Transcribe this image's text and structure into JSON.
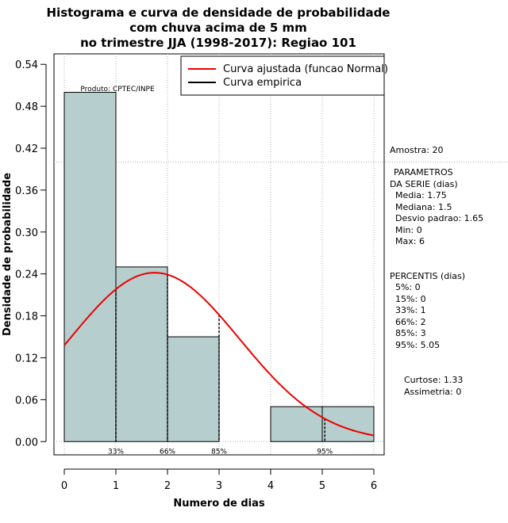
{
  "chart_data": {
    "type": "bar",
    "title": [
      "Histograma e curva de densidade de probabilidade",
      "com chuva acima de 5 mm",
      "no trimestre JJA (1998-2017): Regiao 101"
    ],
    "xlabel": "Numero de dias",
    "ylabel": "Densidade de probabilidade",
    "xlim": [
      -0.2,
      6.2
    ],
    "ylim": [
      -0.019,
      0.555
    ],
    "x_ticks": [
      0,
      1,
      2,
      3,
      4,
      5,
      6
    ],
    "y_ticks": [
      "0.00",
      "0.06",
      "0.12",
      "0.18",
      "0.24",
      "0.30",
      "0.36",
      "0.42",
      "0.48",
      "0.54"
    ],
    "bins": [
      {
        "from": 0,
        "to": 1,
        "density": 0.5
      },
      {
        "from": 1,
        "to": 2,
        "density": 0.25
      },
      {
        "from": 2,
        "to": 3,
        "density": 0.15
      },
      {
        "from": 3,
        "to": 4,
        "density": 0.0
      },
      {
        "from": 4,
        "to": 5,
        "density": 0.05
      },
      {
        "from": 5,
        "to": 6,
        "density": 0.05
      }
    ],
    "bar_color": "#b6cece",
    "curve": {
      "mean": 1.75,
      "sd": 1.65,
      "color": "#ee0000",
      "label": "Curva ajustada (funcao Normal)"
    },
    "empirical_label": "Curva empirica",
    "percentile_marks": [
      {
        "x": 1,
        "label": "33%"
      },
      {
        "x": 2,
        "label": "66%"
      },
      {
        "x": 3,
        "label": "85%"
      },
      {
        "x": 5.05,
        "label": "95%"
      }
    ],
    "sample_line_y": 0.4,
    "product_label": "Produto: CPTEC/INPE"
  },
  "side_panel": {
    "amostra": "Amostra: 20",
    "params_title_1": "PARAMETROS",
    "params_title_2": "DA SERIE (dias)",
    "media": "Media: 1.75",
    "mediana": "Mediana: 1.5",
    "desvio": "Desvio padrao: 1.65",
    "min": "Min: 0",
    "max": "Max: 6",
    "percentis_title": "PERCENTIS (dias)",
    "p5": "5%: 0",
    "p15": "15%: 0",
    "p33": "33%: 1",
    "p66": "66%: 2",
    "p85": "85%: 3",
    "p95": "95%: 5.05",
    "curtose": "Curtose: 1.33",
    "assimetria": "Assimetria: 0"
  }
}
